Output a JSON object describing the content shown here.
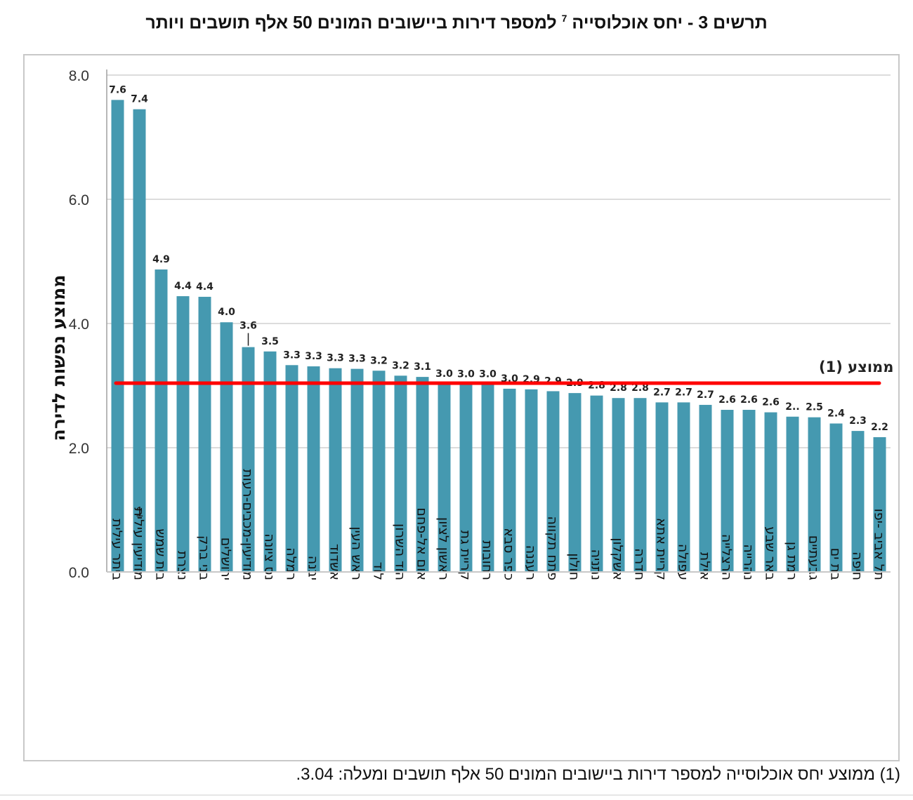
{
  "page": {
    "title_main": "תרשים 3 - יחס אוכלוסייה",
    "title_sup": "7",
    "title_rest": "למספר דירות ביישובים המונים 50 אלף תושבים ויותר",
    "footnote": "(1) ממוצע יחס אוכלוסייה למספר דירות ביישובים המונים 50 אלף תושבים ומעלה: 3.04."
  },
  "chart_data": {
    "type": "bar",
    "title": "תרשים 3 - יחס אוכלוסייה 7 למספר דירות ביישובים המונים 50 אלף תושבים ויותר",
    "xlabel": "",
    "ylabel": "ממוצע נפשות לדירה",
    "ylim": [
      0,
      8
    ],
    "yticks": [
      "0.0",
      "2.0",
      "4.0",
      "6.0",
      "8.0"
    ],
    "ytick_values": [
      0,
      2,
      4,
      6,
      8
    ],
    "grid": true,
    "bar_color": "#4599b0",
    "categories": [
      "ביתר עילית",
      "מודיעין עילית",
      "בית שמש",
      "נצרת",
      "בני ברק",
      "ירושלים",
      "מודיעין-מכבים-רעות",
      "נס ציונה",
      "רמלה",
      "יבנה",
      "אשדוד",
      "ראש העין",
      "לוד",
      "הוד השרון",
      "אום אל-פחם",
      "ראשון לציון",
      "קריית גת",
      "רחובות",
      "כפר סבא",
      "רעננה",
      "פתח תקווה",
      "חולון",
      "נתניה",
      "אשקלון",
      "חדרה",
      "קריית אתא",
      "עפולה",
      "אילת",
      "הרצלייה",
      "נהרייה",
      "באר שבע",
      "רמת גן",
      "גבעתיים",
      "בת ים",
      "חיפה",
      "תל אביב -יפו"
    ],
    "values": [
      7.6,
      7.45,
      4.87,
      4.44,
      4.43,
      4.02,
      3.62,
      3.55,
      3.33,
      3.31,
      3.28,
      3.27,
      3.24,
      3.16,
      3.14,
      3.03,
      3.02,
      3.02,
      2.95,
      2.94,
      2.91,
      2.88,
      2.84,
      2.8,
      2.8,
      2.73,
      2.73,
      2.69,
      2.61,
      2.61,
      2.57,
      2.5,
      2.49,
      2.39,
      2.27,
      2.17
    ],
    "data_labels": [
      "7.6",
      "7.4",
      "4.9",
      "4.4",
      "4.4",
      "4.0",
      "3.6",
      "3.5",
      "3.3",
      "3.3",
      "3.3",
      "3.3",
      "3.2",
      "3.2",
      "3.1",
      "3.0",
      "3.0",
      "3.0",
      "3.0",
      "2.9",
      "2.9",
      "2.9",
      "2.8",
      "2.8",
      "2.8",
      "2.7",
      "2.7",
      "2.7",
      "2.6",
      "2.6",
      "2.6",
      "2..",
      "2.5",
      "2.4",
      "2.3",
      "2.2"
    ],
    "reference_line": {
      "label": "ממוצע (1)",
      "value": 3.04,
      "color": "#ff0000"
    },
    "annotations": [
      {
        "text": "1",
        "near_category": "מודיעין עילית"
      }
    ],
    "legend": "none"
  }
}
